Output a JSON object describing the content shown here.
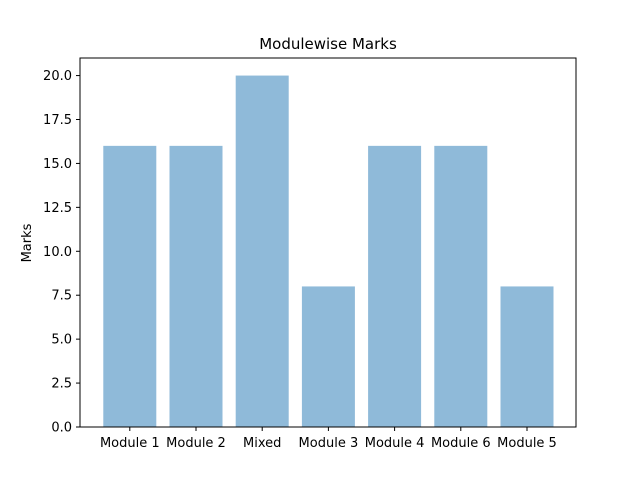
{
  "chart_data": {
    "type": "bar",
    "title": "Modulewise Marks",
    "xlabel": "",
    "ylabel": "Marks",
    "categories": [
      "Module 1",
      "Module 2",
      "Mixed",
      "Module 3",
      "Module 4",
      "Module 6",
      "Module 5"
    ],
    "values": [
      16,
      16,
      20,
      8,
      16,
      16,
      8
    ],
    "ylim": [
      0,
      21
    ],
    "yticks": [
      "0.0",
      "2.5",
      "5.0",
      "7.5",
      "10.0",
      "12.5",
      "15.0",
      "17.5",
      "20.0"
    ],
    "bar_color": "#8fbad9",
    "grid": false,
    "legend": "none"
  }
}
